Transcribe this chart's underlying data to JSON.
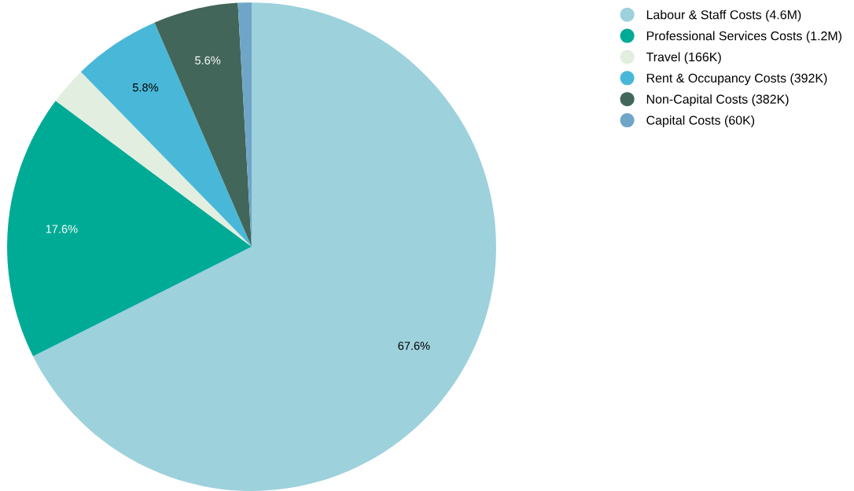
{
  "chart_data": {
    "type": "pie",
    "categories": [
      "Labour & Staff Costs (4.6M)",
      "Professional Services Costs (1.2M)",
      "Travel (166K)",
      "Rent & Occupancy Costs (392K)",
      "Non-Capital Costs (382K)",
      "Capital Costs (60K)"
    ],
    "values": [
      67.6,
      17.6,
      2.5,
      5.8,
      5.6,
      0.9
    ],
    "colors": [
      "#9dd1dc",
      "#00ab96",
      "#e2eee0",
      "#49b8d8",
      "#426659",
      "#6fa6c8"
    ],
    "value_labels": [
      "67.6%",
      "17.6%",
      null,
      "5.8%",
      "5.6%",
      null
    ],
    "legend": "top right"
  }
}
